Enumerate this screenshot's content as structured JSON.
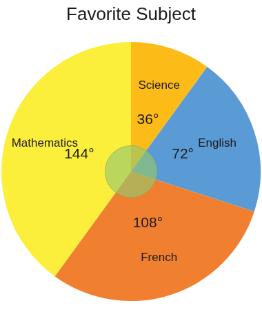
{
  "chart_data": {
    "type": "pie",
    "title": "Favorite Subject",
    "categories": [
      "Science",
      "English",
      "French",
      "Mathematics"
    ],
    "values": [
      36,
      72,
      108,
      144
    ],
    "value_labels": [
      "36°",
      "72°",
      "108°",
      "144°"
    ],
    "colors": [
      "#fdbb17",
      "#5b9bd5",
      "#f08030",
      "#fbef3c"
    ],
    "data_labels": true
  }
}
